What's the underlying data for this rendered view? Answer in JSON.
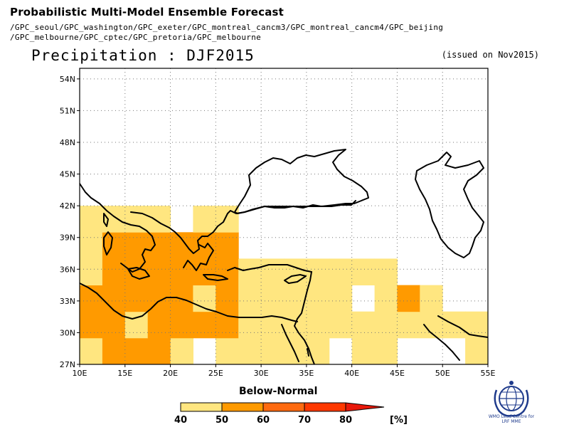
{
  "header": {
    "title": "Probabilistic Multi-Model Ensemble Forecast",
    "models_line1": "/GPC_seoul/GPC_washington/GPC_exeter/GPC_montreal_cancm3/GPC_montreal_cancm4/GPC_beijing",
    "models_line2": "/GPC_melbourne/GPC_cptec/GPC_pretoria/GPC_melbourne",
    "subtitle": "Precipitation : DJF2015",
    "issued": "(issued on Nov2015)"
  },
  "map": {
    "lon_range": [
      10,
      55
    ],
    "lat_range": [
      27,
      55
    ],
    "lon_ticks": [
      "10E",
      "15E",
      "20E",
      "25E",
      "30E",
      "35E",
      "40E",
      "45E",
      "50E",
      "55E"
    ],
    "lat_ticks": [
      "27N",
      "30N",
      "33N",
      "36N",
      "39N",
      "42N",
      "45N",
      "48N",
      "51N",
      "54N"
    ],
    "grid": true,
    "grid_cell_deg": 2.5,
    "category": "Below-Normal",
    "cells": [
      {
        "lon": 10,
        "lat": 27,
        "class": "40-50"
      },
      {
        "lon": 12.5,
        "lat": 27,
        "class": "50-60"
      },
      {
        "lon": 15,
        "lat": 27,
        "class": "50-60"
      },
      {
        "lon": 17.5,
        "lat": 27,
        "class": "50-60"
      },
      {
        "lon": 20,
        "lat": 27,
        "class": "40-50"
      },
      {
        "lon": 25,
        "lat": 27,
        "class": "40-50"
      },
      {
        "lon": 27.5,
        "lat": 27,
        "class": "40-50"
      },
      {
        "lon": 30,
        "lat": 27,
        "class": "40-50"
      },
      {
        "lon": 32.5,
        "lat": 27,
        "class": "40-50"
      },
      {
        "lon": 35,
        "lat": 27,
        "class": "40-50"
      },
      {
        "lon": 40,
        "lat": 27,
        "class": "40-50"
      },
      {
        "lon": 42.5,
        "lat": 27,
        "class": "40-50"
      },
      {
        "lon": 52.5,
        "lat": 27,
        "class": "40-50"
      },
      {
        "lon": 10,
        "lat": 29.5,
        "class": "50-60"
      },
      {
        "lon": 12.5,
        "lat": 29.5,
        "class": "50-60"
      },
      {
        "lon": 15,
        "lat": 29.5,
        "class": "40-50"
      },
      {
        "lon": 17.5,
        "lat": 29.5,
        "class": "50-60"
      },
      {
        "lon": 20,
        "lat": 29.5,
        "class": "50-60"
      },
      {
        "lon": 22.5,
        "lat": 29.5,
        "class": "50-60"
      },
      {
        "lon": 25,
        "lat": 29.5,
        "class": "50-60"
      },
      {
        "lon": 27.5,
        "lat": 29.5,
        "class": "40-50"
      },
      {
        "lon": 30,
        "lat": 29.5,
        "class": "40-50"
      },
      {
        "lon": 32.5,
        "lat": 29.5,
        "class": "40-50"
      },
      {
        "lon": 35,
        "lat": 29.5,
        "class": "40-50"
      },
      {
        "lon": 37.5,
        "lat": 29.5,
        "class": "40-50"
      },
      {
        "lon": 40,
        "lat": 29.5,
        "class": "40-50"
      },
      {
        "lon": 42.5,
        "lat": 29.5,
        "class": "40-50"
      },
      {
        "lon": 45,
        "lat": 29.5,
        "class": "40-50"
      },
      {
        "lon": 47.5,
        "lat": 29.5,
        "class": "40-50"
      },
      {
        "lon": 50,
        "lat": 29.5,
        "class": "40-50"
      },
      {
        "lon": 52.5,
        "lat": 29.5,
        "class": "40-50"
      },
      {
        "lon": 10,
        "lat": 32,
        "class": "50-60"
      },
      {
        "lon": 12.5,
        "lat": 32,
        "class": "50-60"
      },
      {
        "lon": 15,
        "lat": 32,
        "class": "50-60"
      },
      {
        "lon": 17.5,
        "lat": 32,
        "class": "50-60"
      },
      {
        "lon": 20,
        "lat": 32,
        "class": "50-60"
      },
      {
        "lon": 22.5,
        "lat": 32,
        "class": "40-50"
      },
      {
        "lon": 25,
        "lat": 32,
        "class": "50-60"
      },
      {
        "lon": 27.5,
        "lat": 32,
        "class": "40-50"
      },
      {
        "lon": 30,
        "lat": 32,
        "class": "40-50"
      },
      {
        "lon": 32.5,
        "lat": 32,
        "class": "40-50"
      },
      {
        "lon": 35,
        "lat": 32,
        "class": "40-50"
      },
      {
        "lon": 37.5,
        "lat": 32,
        "class": "40-50"
      },
      {
        "lon": 42.5,
        "lat": 32,
        "class": "40-50"
      },
      {
        "lon": 45,
        "lat": 32,
        "class": "50-60"
      },
      {
        "lon": 47.5,
        "lat": 32,
        "class": "40-50"
      },
      {
        "lon": 10,
        "lat": 34.5,
        "class": "40-50"
      },
      {
        "lon": 12.5,
        "lat": 34.5,
        "class": "50-60"
      },
      {
        "lon": 15,
        "lat": 34.5,
        "class": "50-60"
      },
      {
        "lon": 17.5,
        "lat": 34.5,
        "class": "50-60"
      },
      {
        "lon": 20,
        "lat": 34.5,
        "class": "50-60"
      },
      {
        "lon": 22.5,
        "lat": 34.5,
        "class": "50-60"
      },
      {
        "lon": 25,
        "lat": 34.5,
        "class": "50-60"
      },
      {
        "lon": 27.5,
        "lat": 34.5,
        "class": "40-50"
      },
      {
        "lon": 30,
        "lat": 34.5,
        "class": "40-50"
      },
      {
        "lon": 32.5,
        "lat": 34.5,
        "class": "40-50"
      },
      {
        "lon": 35,
        "lat": 34.5,
        "class": "40-50"
      },
      {
        "lon": 37.5,
        "lat": 34.5,
        "class": "40-50"
      },
      {
        "lon": 40,
        "lat": 34.5,
        "class": "40-50"
      },
      {
        "lon": 42.5,
        "lat": 34.5,
        "class": "40-50"
      },
      {
        "lon": 10,
        "lat": 37,
        "class": "40-50"
      },
      {
        "lon": 12.5,
        "lat": 37,
        "class": "50-60"
      },
      {
        "lon": 15,
        "lat": 37,
        "class": "50-60"
      },
      {
        "lon": 17.5,
        "lat": 37,
        "class": "50-60"
      },
      {
        "lon": 20,
        "lat": 37,
        "class": "50-60"
      },
      {
        "lon": 22.5,
        "lat": 37,
        "class": "50-60"
      },
      {
        "lon": 25,
        "lat": 37,
        "class": "50-60"
      },
      {
        "lon": 10,
        "lat": 39.5,
        "class": "40-50"
      },
      {
        "lon": 12.5,
        "lat": 39.5,
        "class": "40-50"
      },
      {
        "lon": 15,
        "lat": 39.5,
        "class": "40-50"
      },
      {
        "lon": 17.5,
        "lat": 39.5,
        "class": "40-50"
      },
      {
        "lon": 22.5,
        "lat": 39.5,
        "class": "40-50"
      },
      {
        "lon": 25,
        "lat": 39.5,
        "class": "40-50"
      }
    ]
  },
  "legend": {
    "title": "Below-Normal",
    "ticks": [
      "40",
      "50",
      "60",
      "70",
      "80"
    ],
    "unit": "[%]",
    "colors": [
      "#ffe680",
      "#ff9a00",
      "#ff6a10",
      "#ff3800",
      "#e8180a"
    ]
  },
  "logo": {
    "line1": "WMO Lead Centre for",
    "line2": "LRF MME"
  }
}
